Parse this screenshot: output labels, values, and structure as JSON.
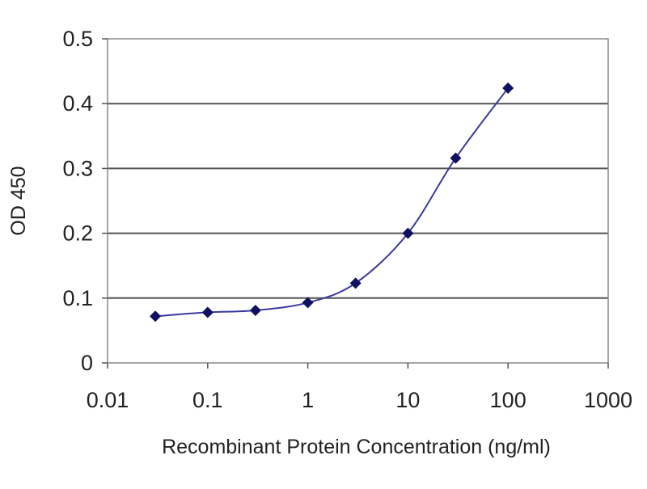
{
  "chart_data": {
    "type": "line",
    "title": "",
    "xlabel": "Recombinant Protein Concentration (ng/ml)",
    "ylabel": "OD 450",
    "xscale": "log",
    "xlim": [
      0.01,
      1000
    ],
    "ylim": [
      0,
      0.5
    ],
    "xticks": [
      "0.01",
      "0.1",
      "1",
      "10",
      "100",
      "1000"
    ],
    "yticks": [
      "0",
      "0.1",
      "0.2",
      "0.3",
      "0.4",
      "0.5"
    ],
    "grid": "horizontal",
    "legend": "none",
    "series": [
      {
        "x": [
          0.03,
          0.1,
          0.3,
          1,
          3,
          10,
          30,
          100
        ],
        "y": [
          0.072,
          0.078,
          0.081,
          0.093,
          0.123,
          0.2,
          0.316,
          0.424
        ],
        "color": "#3a3aa0",
        "marker": "diamond",
        "marker_color": "#101060"
      }
    ]
  }
}
